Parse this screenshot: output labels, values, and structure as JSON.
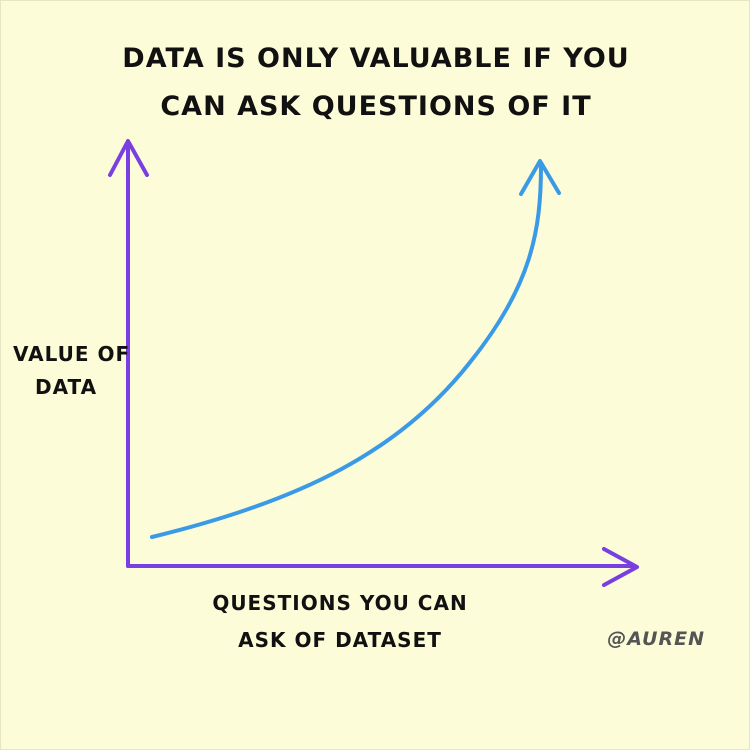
{
  "title": {
    "line1": "DATA IS ONLY VALUABLE IF YOU",
    "line2": "CAN ASK QUESTIONS OF IT"
  },
  "credit": "@AUREN",
  "chart_data": {
    "type": "line",
    "title": "DATA IS ONLY VALUABLE IF YOU CAN ASK QUESTIONS OF IT",
    "xlabel": "QUESTIONS YOU CAN ASK OF DATASET",
    "ylabel": "VALUE OF DATA",
    "xlabel_lines": [
      "QUESTIONS YOU CAN",
      "ASK OF DATASET"
    ],
    "ylabel_lines": [
      "VALUE OF",
      "DATA"
    ],
    "shape": "exponential growth",
    "grid": false,
    "ticks": false,
    "colors": {
      "axis": "#7a3fe0",
      "curve": "#3a9ae6"
    }
  }
}
